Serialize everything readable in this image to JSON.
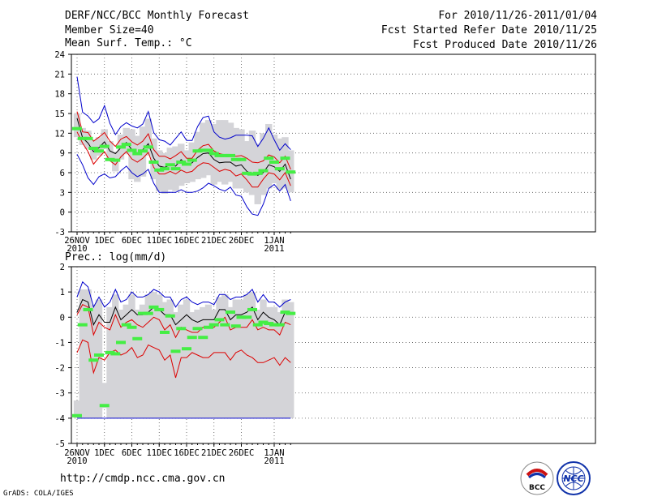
{
  "header": {
    "title": "DERF/NCC/BCC Monthly Forecast",
    "member": "Member Size=40",
    "forecast_period": "For 2010/11/26-2011/01/04",
    "started": "Fcst Started Refer Date 2010/11/25",
    "produced": "Fcst Produced Date 2010/11/26"
  },
  "footer": {
    "url": "http://cmdp.ncc.cma.gov.cn",
    "credit": "GrADS: COLA/IGES",
    "logo_bcc": "BCC",
    "logo_ncc": "NCC"
  },
  "colors": {
    "envelope": "#0000cc",
    "spread": "#dd0000",
    "mean": "#000000",
    "box": "#d4d4d8",
    "obs": "#44ee44"
  },
  "chart_data": [
    {
      "type": "line",
      "title": "Mean Surf. Temp.: °C",
      "x": [
        "26NOV",
        "27NOV",
        "28NOV",
        "29NOV",
        "30NOV",
        "1DEC",
        "2DEC",
        "3DEC",
        "4DEC",
        "5DEC",
        "6DEC",
        "7DEC",
        "8DEC",
        "9DEC",
        "10DEC",
        "11DEC",
        "12DEC",
        "13DEC",
        "14DEC",
        "15DEC",
        "16DEC",
        "17DEC",
        "18DEC",
        "19DEC",
        "20DEC",
        "21DEC",
        "22DEC",
        "23DEC",
        "24DEC",
        "25DEC",
        "26DEC",
        "27DEC",
        "28DEC",
        "29DEC",
        "30DEC",
        "31DEC",
        "1JAN",
        "2JAN",
        "3JAN",
        "4JAN"
      ],
      "x_ticks": [
        {
          "label": "26NOV",
          "sub": "2010",
          "index": 0
        },
        {
          "label": "1DEC",
          "sub": "",
          "index": 5
        },
        {
          "label": "6DEC",
          "sub": "",
          "index": 10
        },
        {
          "label": "11DEC",
          "sub": "",
          "index": 15
        },
        {
          "label": "16DEC",
          "sub": "",
          "index": 20
        },
        {
          "label": "21DEC",
          "sub": "",
          "index": 25
        },
        {
          "label": "26DEC",
          "sub": "",
          "index": 30
        },
        {
          "label": "1JAN",
          "sub": "2011",
          "index": 36
        }
      ],
      "ylim": [
        -3,
        24
      ],
      "yticks": [
        -3,
        0,
        3,
        6,
        9,
        12,
        15,
        18,
        21,
        24
      ],
      "grid": true,
      "series": [
        {
          "name": "max",
          "color": "#0000cc",
          "values": [
            20.6,
            15.2,
            14.6,
            13.6,
            14.2,
            16.2,
            13.5,
            11.8,
            13.0,
            13.6,
            13.1,
            12.8,
            13.4,
            15.3,
            12.1,
            11.0,
            10.8,
            10.2,
            11.2,
            12.2,
            10.9,
            10.9,
            13.0,
            14.4,
            14.6,
            12.2,
            11.4,
            11.1,
            11.3,
            11.7,
            11.7,
            11.7,
            11.6,
            10.0,
            11.2,
            12.8,
            11.0,
            9.4,
            10.4,
            9.5
          ]
        },
        {
          "name": "upper",
          "color": "#dd0000",
          "values": [
            15.3,
            12.2,
            12.1,
            10.8,
            11.4,
            12.1,
            10.8,
            10.0,
            11.1,
            11.5,
            10.7,
            10.2,
            10.8,
            11.9,
            9.5,
            8.5,
            8.5,
            8.1,
            8.6,
            9.2,
            8.2,
            8.2,
            9.4,
            10.1,
            10.3,
            9.3,
            8.9,
            8.7,
            8.7,
            8.5,
            8.6,
            8.2,
            7.6,
            7.5,
            7.8,
            8.7,
            8.4,
            7.5,
            8.5,
            6.5
          ]
        },
        {
          "name": "mean",
          "color": "#000000",
          "values": [
            14.3,
            11.3,
            10.5,
            9.2,
            9.8,
            10.7,
            9.3,
            8.9,
            9.8,
            10.6,
            9.5,
            8.9,
            9.5,
            10.4,
            8.2,
            7.0,
            6.8,
            7.2,
            7.0,
            8.0,
            7.2,
            7.5,
            8.3,
            8.9,
            9.0,
            8.0,
            7.5,
            7.6,
            7.6,
            7.0,
            7.2,
            6.2,
            5.8,
            5.6,
            6.0,
            7.2,
            6.9,
            6.2,
            7.3,
            5.0
          ]
        },
        {
          "name": "lower",
          "color": "#dd0000",
          "values": [
            12.2,
            10.5,
            9.2,
            7.3,
            8.3,
            9.2,
            7.8,
            7.2,
            8.4,
            9.2,
            8.1,
            7.6,
            8.2,
            9.1,
            6.8,
            5.8,
            5.8,
            6.2,
            5.8,
            6.4,
            6.0,
            6.2,
            7.0,
            7.5,
            7.4,
            6.8,
            6.2,
            6.5,
            6.3,
            5.5,
            5.8,
            4.9,
            3.8,
            3.8,
            5.0,
            6.0,
            5.8,
            4.9,
            6.0,
            4.0
          ]
        },
        {
          "name": "min",
          "color": "#0000cc",
          "values": [
            8.8,
            7.2,
            5.2,
            4.2,
            5.4,
            5.8,
            5.2,
            5.4,
            6.3,
            7.0,
            6.0,
            5.4,
            5.8,
            6.5,
            4.4,
            3.0,
            3.0,
            3.0,
            3.0,
            3.4,
            3.0,
            3.0,
            3.2,
            3.7,
            4.4,
            4.0,
            3.5,
            3.2,
            3.8,
            2.6,
            2.4,
            0.8,
            -0.3,
            -0.5,
            1.2,
            3.6,
            4.2,
            3.2,
            4.2,
            1.7
          ]
        }
      ],
      "boxes": [
        [
          11.4,
          15.0
        ],
        [
          10.2,
          12.8
        ],
        [
          9.6,
          12.4
        ],
        [
          8.0,
          11.0
        ],
        [
          8.6,
          11.4
        ],
        [
          9.6,
          12.6
        ],
        [
          8.0,
          10.8
        ],
        [
          6.2,
          9.2
        ],
        [
          8.0,
          11.8
        ],
        [
          8.8,
          12.8
        ],
        [
          5.0,
          12.6
        ],
        [
          4.6,
          11.6
        ],
        [
          5.4,
          13.0
        ],
        [
          8.6,
          14.2
        ],
        [
          5.0,
          11.2
        ],
        [
          3.2,
          9.4
        ],
        [
          2.8,
          9.0
        ],
        [
          3.4,
          9.8
        ],
        [
          3.2,
          10.0
        ],
        [
          4.0,
          10.4
        ],
        [
          4.4,
          9.4
        ],
        [
          4.6,
          10.6
        ],
        [
          5.0,
          12.2
        ],
        [
          5.2,
          13.6
        ],
        [
          5.6,
          14.0
        ],
        [
          4.2,
          13.4
        ],
        [
          4.6,
          14.0
        ],
        [
          4.2,
          14.0
        ],
        [
          4.6,
          13.6
        ],
        [
          3.6,
          12.8
        ],
        [
          3.6,
          12.6
        ],
        [
          3.0,
          10.8
        ],
        [
          2.6,
          12.4
        ],
        [
          1.2,
          10.4
        ],
        [
          2.6,
          12.0
        ],
        [
          3.6,
          13.4
        ],
        [
          4.4,
          11.8
        ],
        [
          3.4,
          11.2
        ],
        [
          3.6,
          11.4
        ],
        [
          3.0,
          9.4
        ]
      ],
      "observed": [
        12.7,
        11.2,
        11.2,
        9.7,
        9.3,
        10.0,
        8.0,
        7.9,
        9.9,
        10.3,
        9.4,
        8.9,
        9.3,
        9.9,
        7.6,
        6.4,
        6.6,
        7.2,
        6.6,
        7.6,
        7.3,
        7.9,
        9.3,
        9.4,
        9.4,
        8.9,
        8.6,
        8.6,
        8.6,
        8.0,
        8.0,
        5.9,
        5.8,
        5.9,
        6.3,
        8.2,
        7.6,
        6.6,
        8.2,
        6.1
      ]
    },
    {
      "type": "line",
      "title": "Prec.: log(mm/d)",
      "x": [
        "26NOV",
        "27NOV",
        "28NOV",
        "29NOV",
        "30NOV",
        "1DEC",
        "2DEC",
        "3DEC",
        "4DEC",
        "5DEC",
        "6DEC",
        "7DEC",
        "8DEC",
        "9DEC",
        "10DEC",
        "11DEC",
        "12DEC",
        "13DEC",
        "14DEC",
        "15DEC",
        "16DEC",
        "17DEC",
        "18DEC",
        "19DEC",
        "20DEC",
        "21DEC",
        "22DEC",
        "23DEC",
        "24DEC",
        "25DEC",
        "26DEC",
        "27DEC",
        "28DEC",
        "29DEC",
        "30DEC",
        "31DEC",
        "1JAN",
        "2JAN",
        "3JAN",
        "4JAN"
      ],
      "x_ticks": [
        {
          "label": "26NOV",
          "sub": "2010",
          "index": 0
        },
        {
          "label": "1DEC",
          "sub": "",
          "index": 5
        },
        {
          "label": "6DEC",
          "sub": "",
          "index": 10
        },
        {
          "label": "11DEC",
          "sub": "",
          "index": 15
        },
        {
          "label": "16DEC",
          "sub": "",
          "index": 20
        },
        {
          "label": "21DEC",
          "sub": "",
          "index": 25
        },
        {
          "label": "26DEC",
          "sub": "",
          "index": 30
        },
        {
          "label": "1JAN",
          "sub": "2011",
          "index": 36
        }
      ],
      "ylim": [
        -5,
        2
      ],
      "yticks": [
        -5,
        -4,
        -3,
        -2,
        -1,
        0,
        1,
        2
      ],
      "grid": true,
      "series": [
        {
          "name": "max",
          "color": "#0000cc",
          "values": [
            0.8,
            1.4,
            1.2,
            0.4,
            0.8,
            0.4,
            0.6,
            1.1,
            0.6,
            0.7,
            1.0,
            0.8,
            0.8,
            0.9,
            1.1,
            1.0,
            0.8,
            0.8,
            0.4,
            0.7,
            0.8,
            0.6,
            0.5,
            0.6,
            0.6,
            0.5,
            0.9,
            0.9,
            0.7,
            0.8,
            0.8,
            0.9,
            1.1,
            0.6,
            0.9,
            0.6,
            0.6,
            0.4,
            0.6,
            0.7
          ]
        },
        {
          "name": "upper",
          "color": "#000000",
          "values": [
            0.2,
            0.7,
            0.6,
            -0.3,
            0.1,
            -0.2,
            -0.2,
            0.4,
            -0.1,
            0.1,
            0.3,
            0.1,
            0.1,
            0.2,
            0.4,
            0.3,
            0.1,
            0.1,
            -0.3,
            -0.1,
            0.1,
            -0.1,
            -0.2,
            -0.1,
            -0.1,
            -0.1,
            0.3,
            0.3,
            -0.1,
            0.1,
            0.1,
            0.2,
            0.4,
            -0.1,
            0.2,
            0.0,
            -0.1,
            -0.3,
            0.2,
            0.1
          ]
        },
        {
          "name": "mean",
          "color": "#dd0000",
          "values": [
            0.1,
            0.5,
            0.4,
            -0.7,
            -0.2,
            -0.4,
            -0.5,
            0.1,
            -0.4,
            -0.2,
            -0.1,
            -0.3,
            -0.4,
            -0.2,
            0.0,
            -0.1,
            -0.5,
            -0.3,
            -0.8,
            -0.4,
            -0.5,
            -0.6,
            -0.6,
            -0.4,
            -0.4,
            -0.4,
            -0.2,
            0.0,
            -0.5,
            -0.4,
            -0.4,
            -0.4,
            -0.1,
            -0.5,
            -0.4,
            -0.5,
            -0.5,
            -0.7,
            -0.2,
            -0.3
          ]
        },
        {
          "name": "lower",
          "color": "#dd0000",
          "values": [
            -1.4,
            -0.9,
            -1.0,
            -2.2,
            -1.6,
            -1.7,
            -1.4,
            -1.3,
            -1.5,
            -1.4,
            -1.2,
            -1.6,
            -1.5,
            -1.1,
            -1.2,
            -1.3,
            -1.7,
            -1.5,
            -2.4,
            -1.6,
            -1.6,
            -1.4,
            -1.5,
            -1.6,
            -1.6,
            -1.4,
            -1.4,
            -1.4,
            -1.7,
            -1.4,
            -1.3,
            -1.5,
            -1.6,
            -1.8,
            -1.8,
            -1.7,
            -1.6,
            -1.9,
            -1.6,
            -1.8
          ]
        },
        {
          "name": "min",
          "color": "#0000cc",
          "values": [
            -4,
            -4,
            -4,
            -4,
            -4,
            -4,
            -4,
            -4,
            -4,
            -4,
            -4,
            -4,
            -4,
            -4,
            -4,
            -4,
            -4,
            -4,
            -4,
            -4,
            -4,
            -4,
            -4,
            -4,
            -4,
            -4,
            -4,
            -4,
            -4,
            -4,
            -4,
            -4,
            -4,
            -4,
            -4,
            -4,
            -4,
            -4,
            -4,
            -4
          ]
        }
      ],
      "boxes": [
        [
          -4.0,
          -3.3
        ],
        [
          -4.0,
          1.1
        ],
        [
          -4.0,
          1.1
        ],
        [
          -4.0,
          0.5
        ],
        [
          -4.0,
          0.7
        ],
        [
          -3.6,
          -2.6
        ],
        [
          -4.0,
          0.4
        ],
        [
          -4.0,
          0.9
        ],
        [
          -4.0,
          0.3
        ],
        [
          -4.0,
          0.5
        ],
        [
          -4.0,
          0.9
        ],
        [
          -4.0,
          0.3
        ],
        [
          -4.0,
          0.5
        ],
        [
          -4.0,
          0.9
        ],
        [
          -4.0,
          1.0
        ],
        [
          -4.0,
          0.9
        ],
        [
          -4.0,
          0.6
        ],
        [
          -4.0,
          0.7
        ],
        [
          -4.0,
          0.2
        ],
        [
          -4.0,
          0.5
        ],
        [
          -4.0,
          0.7
        ],
        [
          -4.0,
          0.2
        ],
        [
          -4.0,
          0.3
        ],
        [
          -4.0,
          0.4
        ],
        [
          -4.0,
          0.5
        ],
        [
          -4.0,
          0.3
        ],
        [
          -4.0,
          0.8
        ],
        [
          -4.0,
          0.9
        ],
        [
          -4.0,
          0.4
        ],
        [
          -4.0,
          0.7
        ],
        [
          -4.0,
          0.7
        ],
        [
          -4.0,
          0.9
        ],
        [
          -4.0,
          1.0
        ],
        [
          -4.0,
          0.3
        ],
        [
          -4.0,
          0.7
        ],
        [
          -4.0,
          0.4
        ],
        [
          -4.0,
          0.4
        ],
        [
          -4.0,
          0.2
        ],
        [
          -4.0,
          0.7
        ],
        [
          -4.0,
          0.6
        ]
      ],
      "observed": [
        -3.9,
        -0.3,
        0.3,
        -1.7,
        -1.5,
        -3.5,
        -1.4,
        -1.45,
        -1.0,
        -0.3,
        -0.4,
        -0.85,
        0.15,
        0.15,
        0.4,
        0.3,
        -0.6,
        0.05,
        -1.35,
        -0.45,
        -1.25,
        -0.8,
        -0.45,
        -0.8,
        -0.4,
        -0.3,
        -0.1,
        -0.3,
        0.2,
        -0.35,
        0.0,
        0.0,
        0.3,
        -0.3,
        -0.2,
        -0.25,
        -0.3,
        -0.3,
        0.2,
        0.15
      ]
    }
  ]
}
